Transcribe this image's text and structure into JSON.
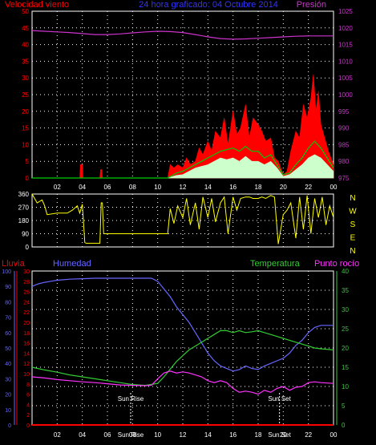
{
  "colors": {
    "background": "#000000",
    "grid": "#ffffff",
    "frame": "#ffffff",
    "wind_label": "#ff0000",
    "pressure": "#cc33cc",
    "title": "#3333ff",
    "wind_max": "#ff0000",
    "wind_avg": "#00cc00",
    "wind_min": "#ccffcc",
    "direction": "#ffff00",
    "rain": "#ff0000",
    "humidity": "#6666ff",
    "temperature": "#33cc33",
    "dew_point": "#ff33ff",
    "compass": "#ffff00",
    "sun": "#ffffff"
  },
  "chart_data": [
    {
      "type": "area",
      "title": "24 hora graficado: 04 Octubre 2014",
      "left_label": "Velocidad viento",
      "right_label": "Presión",
      "x_ticks": [
        "02",
        "04",
        "06",
        "08",
        "10",
        "12",
        "14",
        "16",
        "18",
        "20",
        "22",
        "00"
      ],
      "y_left_ticks": [
        "0",
        "5",
        "10",
        "15",
        "20",
        "25",
        "30",
        "35",
        "40",
        "45",
        "50"
      ],
      "y_left_range": [
        0,
        50
      ],
      "y_right_ticks": [
        "975",
        "980",
        "985",
        "990",
        "995",
        "1000",
        "1005",
        "1010",
        "1015",
        "1020",
        "1025"
      ],
      "y_right_range": [
        975,
        1025
      ],
      "x_range": [
        0,
        24
      ],
      "grid": true,
      "series": [
        {
          "key": "gust",
          "x": [
            0,
            3.8,
            3.85,
            4.0,
            4.05,
            5.4,
            5.45,
            5.55,
            5.6,
            10.8,
            11.0,
            11.3,
            11.6,
            12.0,
            12.3,
            12.6,
            13.0,
            13.3,
            13.6,
            14.0,
            14.3,
            14.6,
            15.0,
            15.3,
            15.6,
            16.0,
            16.3,
            16.6,
            17.0,
            17.3,
            17.6,
            18.0,
            18.3,
            18.6,
            19.0,
            19.3,
            19.6,
            20.0,
            20.3,
            20.6,
            21.0,
            21.3,
            21.6,
            21.9,
            22.2,
            22.4,
            22.6,
            22.8,
            23.0,
            23.3,
            23.6,
            24.0
          ],
          "y": [
            0,
            0,
            4,
            4,
            0,
            0,
            2.5,
            2.5,
            0,
            0,
            4,
            3,
            4,
            3,
            6,
            4,
            5,
            9,
            7,
            11,
            8,
            14,
            12,
            18,
            10,
            20,
            13,
            15,
            22,
            12,
            18,
            16,
            14,
            11,
            12,
            6,
            5,
            1,
            2,
            8,
            14,
            12,
            22,
            18,
            24,
            31,
            20,
            26,
            16,
            12,
            8,
            4
          ]
        },
        {
          "key": "avg",
          "x": [
            0,
            10.8,
            11.5,
            12.0,
            12.5,
            13.0,
            13.5,
            14.0,
            14.5,
            15.0,
            15.5,
            16.0,
            16.5,
            17.0,
            17.5,
            18.0,
            18.5,
            19.0,
            19.5,
            20.0,
            20.5,
            21.0,
            21.5,
            22.0,
            22.5,
            23.0,
            23.5,
            24.0
          ],
          "y": [
            0,
            0,
            1.5,
            2,
            3,
            4,
            5,
            6,
            7,
            8,
            8.5,
            9,
            8,
            9.5,
            8,
            8,
            6,
            7,
            4,
            1,
            1.5,
            4,
            6,
            9,
            11,
            9,
            6,
            3
          ]
        },
        {
          "key": "min",
          "x": [
            0,
            10.8,
            11.5,
            12.0,
            12.5,
            13.0,
            13.5,
            14.0,
            14.5,
            15.0,
            15.5,
            16.0,
            16.5,
            17.0,
            17.5,
            18.0,
            18.5,
            19.0,
            19.5,
            20.0,
            20.5,
            21.0,
            21.5,
            22.0,
            22.5,
            23.0,
            23.5,
            24.0
          ],
          "y": [
            0,
            0,
            0.8,
            1,
            2,
            3,
            3.5,
            4,
            5,
            6,
            5.5,
            6,
            5,
            6.5,
            5,
            5,
            4,
            5,
            3,
            0.5,
            1,
            2.5,
            4,
            6,
            7,
            6,
            4,
            2
          ]
        },
        {
          "key": "pressure",
          "x": [
            0,
            1,
            2,
            3,
            4,
            5,
            6,
            7,
            8,
            9,
            10,
            11,
            12,
            13,
            14,
            15,
            16,
            17,
            18,
            19,
            20,
            21,
            22,
            23,
            24
          ],
          "y": [
            1019.2,
            1019.0,
            1018.8,
            1018.6,
            1018.3,
            1018.0,
            1018.0,
            1018.2,
            1018.5,
            1018.8,
            1019.0,
            1018.9,
            1018.6,
            1018.0,
            1017.3,
            1016.8,
            1016.6,
            1016.7,
            1016.9,
            1017.1,
            1017.3,
            1017.5,
            1017.6,
            1017.6,
            1017.6
          ]
        }
      ]
    },
    {
      "type": "line",
      "title": "",
      "y_left_ticks": [
        "0",
        "90",
        "180",
        "270",
        "360"
      ],
      "y_range": [
        0,
        360
      ],
      "compass_labels": [
        "N",
        "W",
        "S",
        "E",
        "N"
      ],
      "x_range": [
        0,
        24
      ],
      "grid": true,
      "series": [
        {
          "key": "direction",
          "x": [
            0,
            0.4,
            0.8,
            1.0,
            1.2,
            2.0,
            2.8,
            3.2,
            3.6,
            3.8,
            4.0,
            4.2,
            4.3,
            5.4,
            5.5,
            5.6,
            5.7,
            10.8,
            11.0,
            11.3,
            11.6,
            12.0,
            12.3,
            12.6,
            13.0,
            13.3,
            13.6,
            14.0,
            14.3,
            14.6,
            15.0,
            15.3,
            15.6,
            16.0,
            16.3,
            16.6,
            17.0,
            17.3,
            17.6,
            18.0,
            18.3,
            18.6,
            19.0,
            19.3,
            19.6,
            20.0,
            20.3,
            20.6,
            21.0,
            21.3,
            21.6,
            21.9,
            22.2,
            22.5,
            22.8,
            23.1,
            23.4,
            23.7,
            24.0
          ],
          "y": [
            360,
            300,
            320,
            280,
            220,
            230,
            230,
            250,
            280,
            230,
            290,
            30,
            25,
            25,
            300,
            300,
            90,
            90,
            260,
            160,
            280,
            200,
            330,
            150,
            300,
            120,
            340,
            200,
            330,
            170,
            300,
            340,
            90,
            340,
            250,
            330,
            340,
            340,
            330,
            330,
            340,
            330,
            350,
            340,
            20,
            220,
            250,
            300,
            60,
            340,
            120,
            350,
            90,
            330,
            200,
            340,
            150,
            280,
            200
          ]
        }
      ]
    },
    {
      "type": "line",
      "title": "",
      "left_label": "Lluvia",
      "humidity_label": "Humedad",
      "temp_label": "Temperatura",
      "dew_label": "Punto rocío",
      "y_rain_ticks": [
        "0",
        "10",
        "20",
        "30",
        "40",
        "50",
        "60",
        "70",
        "80",
        "90",
        "100"
      ],
      "y_rain_range": [
        0,
        100
      ],
      "y_hum_ticks": [
        "0",
        "2",
        "4",
        "6",
        "8",
        "10",
        "12",
        "14",
        "16",
        "18",
        "20",
        "22",
        "24",
        "26",
        "28",
        "30"
      ],
      "y_hum_range": [
        0,
        30
      ],
      "y_temp_ticks": [
        "0",
        "5",
        "10",
        "15",
        "20",
        "25",
        "30",
        "35",
        "40"
      ],
      "y_temp_range": [
        0,
        40
      ],
      "x_range": [
        0,
        24
      ],
      "sunrise_label": "Sun Rise",
      "sunset_label": "Sun Set",
      "sunrise_x": 7.85,
      "sunset_x": 19.7,
      "grid": true,
      "series": [
        {
          "key": "rain",
          "x": [
            0,
            24
          ],
          "y": [
            0,
            0
          ]
        },
        {
          "key": "humidity",
          "x": [
            0,
            0.5,
            1.0,
            1.5,
            2.0,
            2.5,
            3.0,
            4.0,
            5.0,
            6.0,
            7.0,
            8.0,
            9.0,
            9.5,
            10.0,
            10.5,
            11.0,
            11.5,
            12.0,
            12.5,
            13.0,
            13.5,
            14.0,
            14.5,
            15.0,
            15.5,
            16.0,
            16.5,
            17.0,
            17.5,
            18.0,
            18.5,
            19.0,
            19.5,
            20.0,
            20.5,
            21.0,
            21.5,
            22.0,
            22.5,
            23.0,
            24.0
          ],
          "y": [
            27.0,
            27.5,
            27.8,
            28.0,
            28.2,
            28.3,
            28.4,
            28.5,
            28.6,
            28.6,
            28.6,
            28.6,
            28.6,
            28.6,
            28.0,
            26.5,
            25.0,
            23.0,
            21.5,
            20.0,
            18.0,
            16.0,
            14.0,
            12.5,
            11.5,
            11.0,
            10.5,
            10.8,
            11.5,
            11.0,
            10.8,
            11.5,
            12.0,
            12.5,
            13.0,
            14.0,
            15.5,
            16.5,
            18.0,
            19.0,
            19.4,
            19.4
          ]
        },
        {
          "key": "temperature",
          "x": [
            0,
            1,
            2,
            3,
            4,
            5,
            6,
            7,
            8,
            9,
            10,
            10.5,
            11,
            11.5,
            12,
            12.5,
            13,
            13.5,
            14,
            14.5,
            15,
            15.5,
            16,
            16.5,
            17,
            17.5,
            18,
            18.5,
            19,
            19.5,
            20,
            20.5,
            21,
            21.5,
            22,
            22.5,
            23,
            24
          ],
          "y": [
            15.0,
            14.3,
            13.7,
            13.0,
            12.5,
            12.0,
            11.5,
            11.0,
            10.5,
            10.3,
            10.8,
            12.5,
            14.5,
            16.5,
            18.0,
            19.5,
            20.5,
            21.5,
            22.5,
            23.5,
            24.5,
            24.5,
            24.0,
            24.5,
            24.0,
            24.2,
            24.5,
            24.0,
            23.5,
            23.0,
            22.5,
            22.0,
            21.5,
            21.0,
            20.5,
            20.0,
            19.8,
            19.5
          ]
        },
        {
          "key": "dew_point",
          "x": [
            0,
            1,
            2,
            3,
            4,
            5,
            6,
            7,
            8,
            9,
            9.5,
            10,
            10.5,
            11,
            11.5,
            12,
            12.5,
            13,
            13.5,
            14,
            14.5,
            15,
            15.5,
            16,
            16.5,
            17,
            17.5,
            18,
            18.5,
            19,
            19.5,
            20,
            20.5,
            21,
            21.5,
            22,
            22.5,
            23,
            24
          ],
          "y": [
            12.5,
            12.2,
            11.8,
            11.5,
            11.2,
            11.0,
            10.7,
            10.4,
            10.3,
            10.2,
            10.3,
            12.0,
            13.5,
            14.0,
            13.5,
            13.8,
            13.5,
            13.0,
            12.5,
            11.5,
            11.0,
            11.5,
            11.0,
            9.5,
            8.5,
            8.8,
            8.5,
            8.0,
            9.0,
            8.5,
            9.5,
            10.0,
            9.0,
            9.8,
            10.0,
            11.0,
            11.2,
            11.0,
            10.8
          ]
        }
      ]
    }
  ]
}
